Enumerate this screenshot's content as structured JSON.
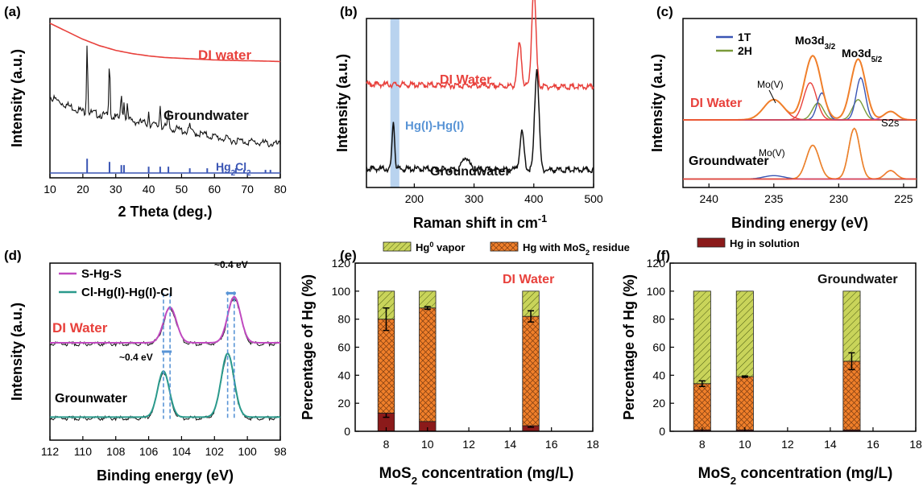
{
  "colors": {
    "red": "#e8413c",
    "black": "#111111",
    "blue": "#3a55b4",
    "lightblue": "#b9d3ef",
    "ramanblue": "#5a95d6",
    "orange": "#f07f2a",
    "green": "#7a9a3a",
    "teal": "#2a9a8c",
    "magenta": "#c04ac0",
    "darkred": "#8b1a1a",
    "hatchgreen": "#c9d45a"
  },
  "chart_data": [
    {
      "id": "a",
      "panel_label": "(a)",
      "type": "line",
      "xlabel": "2 Theta (deg.)",
      "ylabel": "Intensity (a.u.)",
      "xlim": [
        10,
        80
      ],
      "xticks": [
        "10",
        "20",
        "30",
        "40",
        "50",
        "60",
        "70",
        "80"
      ],
      "series": [
        {
          "name": "DI water",
          "color": "#e8413c",
          "x": [
            10,
            15,
            20,
            25,
            30,
            35,
            40,
            45,
            50,
            55,
            60,
            65,
            70,
            75,
            80
          ],
          "y": [
            0.97,
            0.92,
            0.87,
            0.83,
            0.8,
            0.78,
            0.765,
            0.755,
            0.75,
            0.745,
            0.74,
            0.737,
            0.735,
            0.733,
            0.73
          ]
        },
        {
          "name": "Groundwater",
          "color": "#111111",
          "x": [
            10,
            15,
            20,
            25,
            30,
            35,
            40,
            45,
            50,
            55,
            60,
            65,
            70,
            75,
            80
          ],
          "y": [
            0.52,
            0.47,
            0.43,
            0.41,
            0.39,
            0.37,
            0.35,
            0.33,
            0.31,
            0.29,
            0.27,
            0.25,
            0.24,
            0.23,
            0.22
          ],
          "peaks": [
            [
              21.3,
              0.45
            ],
            [
              28.1,
              0.38
            ],
            [
              31.7,
              0.17
            ],
            [
              32.5,
              0.12
            ],
            [
              33.5,
              0.09
            ],
            [
              40.0,
              0.08
            ],
            [
              43.5,
              0.14
            ],
            [
              46.0,
              0.11
            ],
            [
              52.5,
              0.05
            ]
          ]
        },
        {
          "name": "Hg2Cl2",
          "color": "#3a55b4",
          "type": "sticks",
          "sticks": [
            [
              21.3,
              0.09
            ],
            [
              28.1,
              0.07
            ],
            [
              31.7,
              0.05
            ],
            [
              32.5,
              0.05
            ],
            [
              40.0,
              0.04
            ],
            [
              43.5,
              0.04
            ],
            [
              46.0,
              0.04
            ],
            [
              52.5,
              0.03
            ],
            [
              57.8,
              0.03
            ],
            [
              62.5,
              0.03
            ],
            [
              66.5,
              0.03
            ],
            [
              69.0,
              0.02
            ],
            [
              75.5,
              0.02
            ],
            [
              77.0,
              0.02
            ]
          ]
        }
      ],
      "annotations": [
        {
          "text": "DI water",
          "color": "#e8413c"
        },
        {
          "text": "Groundwater",
          "color": "#111111"
        },
        {
          "text": "Hg",
          "sub": "2",
          "text2": "Cl",
          "sub2": "2",
          "color": "#3a55b4"
        }
      ]
    },
    {
      "id": "b",
      "panel_label": "(b)",
      "type": "line",
      "xlabel": "Raman shift in cm",
      "xlabel_sup": "-1",
      "ylabel": "Intensity (a.u.)",
      "xlim": [
        120,
        500
      ],
      "xticks": [
        "200",
        "300",
        "400",
        "500"
      ],
      "highlight_band": [
        160,
        175
      ],
      "series": [
        {
          "name": "DI Water",
          "color": "#e8413c",
          "baseline": 0.62,
          "slope": 0.06,
          "peaks": [
            [
              376,
              0.25,
              5
            ],
            [
              400,
              0.58,
              5
            ]
          ]
        },
        {
          "name": "Groundwater",
          "color": "#111111",
          "baseline": 0.12,
          "slope": 0.03,
          "peaks": [
            [
              165,
              0.28,
              3
            ],
            [
              286,
              0.07,
              8
            ],
            [
              380,
              0.22,
              5
            ],
            [
              405,
              0.6,
              5
            ]
          ]
        }
      ],
      "annotations": [
        {
          "text": "DI Water",
          "color": "#e8413c"
        },
        {
          "text": "Hg(I)-Hg(I)",
          "color": "#5a95d6"
        },
        {
          "text": "Groundwater",
          "color": "#111111"
        }
      ]
    },
    {
      "id": "c",
      "panel_label": "(c)",
      "type": "line",
      "xlabel": "Binding energy (eV)",
      "ylabel": "Intensity (a.u.)",
      "xlim": [
        242,
        224
      ],
      "reversed_x": true,
      "xticks": [
        "240",
        "235",
        "230",
        "225"
      ],
      "legend": [
        {
          "name": "1T",
          "color": "#3a55b4"
        },
        {
          "name": "2H",
          "color": "#7a9a3a"
        }
      ],
      "annotations": [
        {
          "text": "Mo3d",
          "sub": "3/2"
        },
        {
          "text": "Mo3d",
          "sub": "5/2"
        },
        {
          "text": "Mo(V)"
        },
        {
          "text": "DI Water",
          "color": "#e8413c"
        },
        {
          "text": "S2s"
        },
        {
          "text": "Mo(V)"
        },
        {
          "text": "Groundwater"
        }
      ]
    },
    {
      "id": "d",
      "panel_label": "(d)",
      "type": "line",
      "xlabel": "Binding energy (eV)",
      "ylabel": "Intensity (a.u.)",
      "xlim": [
        112,
        98
      ],
      "reversed_x": true,
      "xticks": [
        "112",
        "110",
        "108",
        "106",
        "104",
        "102",
        "100",
        "98"
      ],
      "legend": [
        {
          "name": "S-Hg-S",
          "color": "#c04ac0"
        },
        {
          "name": "Cl-Hg(I)-Hg(I)-Cl",
          "color": "#2a9a8c"
        }
      ],
      "annotations": [
        {
          "text": "~0.4 eV"
        },
        {
          "text": "~0.4 eV"
        },
        {
          "text": "DI Water",
          "color": "#e8413c"
        },
        {
          "text": "Grounwater"
        }
      ]
    },
    {
      "id": "e",
      "panel_label": "(e)",
      "type": "bar",
      "xlabel_prefix": "MoS",
      "xlabel_sub": "2",
      "xlabel_suffix": " concentration (mg/L)",
      "ylabel": "Percentage of Hg (%)",
      "xlim": [
        6.5,
        18
      ],
      "ylim": [
        0,
        120
      ],
      "xticks": [
        "8",
        "10",
        "12",
        "14",
        "16",
        "18"
      ],
      "yticks": [
        "0",
        "20",
        "40",
        "60",
        "80",
        "100",
        "120"
      ],
      "condition_label": "DI Water",
      "categories": [
        8,
        10,
        15
      ],
      "series": [
        {
          "name": "Hg in solution",
          "values": [
            13,
            7,
            4
          ],
          "errors": [
            3,
            0,
            1
          ]
        },
        {
          "name": "Hg with MoS2 residue",
          "values": [
            67,
            81,
            78
          ],
          "errors": [
            0,
            0,
            0
          ]
        },
        {
          "name": "Hg0 vapor",
          "values": [
            20,
            12,
            18
          ],
          "errors": [
            0,
            0,
            0
          ]
        }
      ],
      "top_errors": [
        [
          80,
          8
        ],
        [
          88,
          1
        ],
        [
          82,
          4
        ]
      ]
    },
    {
      "id": "f",
      "panel_label": "(f)",
      "type": "bar",
      "xlabel_prefix": "MoS",
      "xlabel_sub": "2",
      "xlabel_suffix": " concentration (mg/L)",
      "ylabel": "Percentage of Hg (%)",
      "xlim": [
        6.5,
        18
      ],
      "ylim": [
        0,
        120
      ],
      "xticks": [
        "8",
        "10",
        "12",
        "14",
        "16",
        "18"
      ],
      "yticks": [
        "0",
        "20",
        "40",
        "60",
        "80",
        "100",
        "120"
      ],
      "condition_label": "Groundwater",
      "categories": [
        8,
        10,
        15
      ],
      "series": [
        {
          "name": "Hg in solution",
          "values": [
            1,
            1,
            1
          ],
          "errors": [
            0,
            0,
            0
          ]
        },
        {
          "name": "Hg with MoS2 residue",
          "values": [
            33,
            38,
            49
          ],
          "errors": [
            0,
            0,
            0
          ]
        },
        {
          "name": "Hg0 vapor",
          "values": [
            66,
            61,
            50
          ],
          "errors": [
            0,
            0,
            0
          ]
        }
      ],
      "top_errors": [
        [
          34,
          2
        ],
        [
          39,
          0.5
        ],
        [
          50,
          6
        ]
      ]
    }
  ],
  "bar_legend": [
    {
      "prefix": "Hg",
      "sup": "0",
      "suffix": " vapor"
    },
    {
      "prefix": "Hg with MoS",
      "sub": "2",
      "suffix": " residue"
    },
    {
      "prefix": "Hg in solution"
    }
  ]
}
